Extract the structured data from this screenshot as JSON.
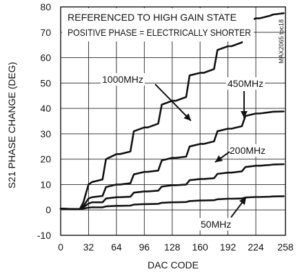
{
  "chart_data": {
    "type": "line",
    "title": "",
    "xlabel": "DAC CODE",
    "ylabel": "S21 PHASE CHANGE (DEG)",
    "xlim": [
      0,
      258
    ],
    "ylim": [
      -10,
      80
    ],
    "x_ticks": [
      0,
      32,
      64,
      96,
      128,
      160,
      192,
      224,
      258
    ],
    "y_ticks": [
      -10,
      0,
      10,
      20,
      30,
      40,
      50,
      60,
      70,
      80
    ],
    "grid": true,
    "legend": "none",
    "annotations": [
      "REFERENCED TO HIGH GAIN STATE",
      "POSITIVE PHASE = ELECTRICALLY SHORTER"
    ],
    "side_label": "MAX2065 toc18",
    "series": [
      {
        "name": "1000MHz",
        "x": [
          0,
          16,
          22,
          26,
          32,
          36,
          48,
          52,
          64,
          68,
          80,
          84,
          96,
          100,
          112,
          116,
          128,
          132,
          144,
          148,
          160,
          164,
          176,
          180,
          192,
          196,
          208,
          212,
          224,
          228,
          240,
          244,
          256
        ],
        "y": [
          0.5,
          0.3,
          0.3,
          3,
          10,
          11,
          12,
          20,
          22,
          22,
          23,
          31,
          32.5,
          32.5,
          34,
          41.5,
          43,
          43,
          44.5,
          53,
          54,
          54,
          55.5,
          63,
          64.5,
          64.5,
          66,
          74,
          75.5,
          75.5,
          76.5,
          77,
          77.5
        ]
      },
      {
        "name": "450MHz",
        "x": [
          0,
          16,
          22,
          26,
          32,
          36,
          48,
          52,
          64,
          68,
          80,
          84,
          96,
          100,
          112,
          116,
          128,
          132,
          144,
          148,
          160,
          164,
          176,
          180,
          192,
          196,
          208,
          212,
          224,
          228,
          240,
          244,
          256
        ],
        "y": [
          0.5,
          0.3,
          0.3,
          1.5,
          4.5,
          5,
          5.5,
          9,
          10,
          10,
          10.5,
          14,
          15,
          15,
          15.5,
          19.5,
          20.5,
          20.5,
          21,
          25,
          26,
          26,
          27,
          31,
          32,
          32,
          33,
          37,
          38,
          38,
          38.5,
          38.7,
          38.8
        ]
      },
      {
        "name": "200MHz",
        "x": [
          0,
          16,
          22,
          26,
          32,
          36,
          48,
          52,
          64,
          68,
          80,
          84,
          96,
          100,
          112,
          116,
          128,
          132,
          144,
          148,
          160,
          164,
          176,
          180,
          192,
          196,
          208,
          212,
          224,
          228,
          240,
          244,
          256
        ],
        "y": [
          0.5,
          0.3,
          0.3,
          1,
          2.5,
          3,
          3,
          4.5,
          5,
          5,
          5.2,
          6.8,
          7.3,
          7.3,
          7.6,
          9.2,
          9.7,
          9.7,
          10,
          11.7,
          12.2,
          12.2,
          12.5,
          14.2,
          14.7,
          14.7,
          15.2,
          16.9,
          17.4,
          17.4,
          17.7,
          17.9,
          18
        ]
      },
      {
        "name": "50MHz",
        "x": [
          0,
          16,
          22,
          26,
          32,
          36,
          48,
          52,
          64,
          68,
          80,
          84,
          96,
          100,
          112,
          116,
          128,
          132,
          144,
          148,
          160,
          164,
          176,
          180,
          192,
          196,
          208,
          212,
          224,
          228,
          240,
          244,
          256
        ],
        "y": [
          0.5,
          0.3,
          0.3,
          0.5,
          0.9,
          1,
          1,
          1.4,
          1.6,
          1.6,
          1.7,
          2.1,
          2.3,
          2.3,
          2.4,
          2.8,
          3,
          3,
          3.1,
          3.5,
          3.7,
          3.7,
          3.8,
          4.2,
          4.4,
          4.4,
          4.5,
          4.9,
          5.1,
          5.1,
          5.2,
          5.3,
          5.4
        ]
      }
    ]
  }
}
